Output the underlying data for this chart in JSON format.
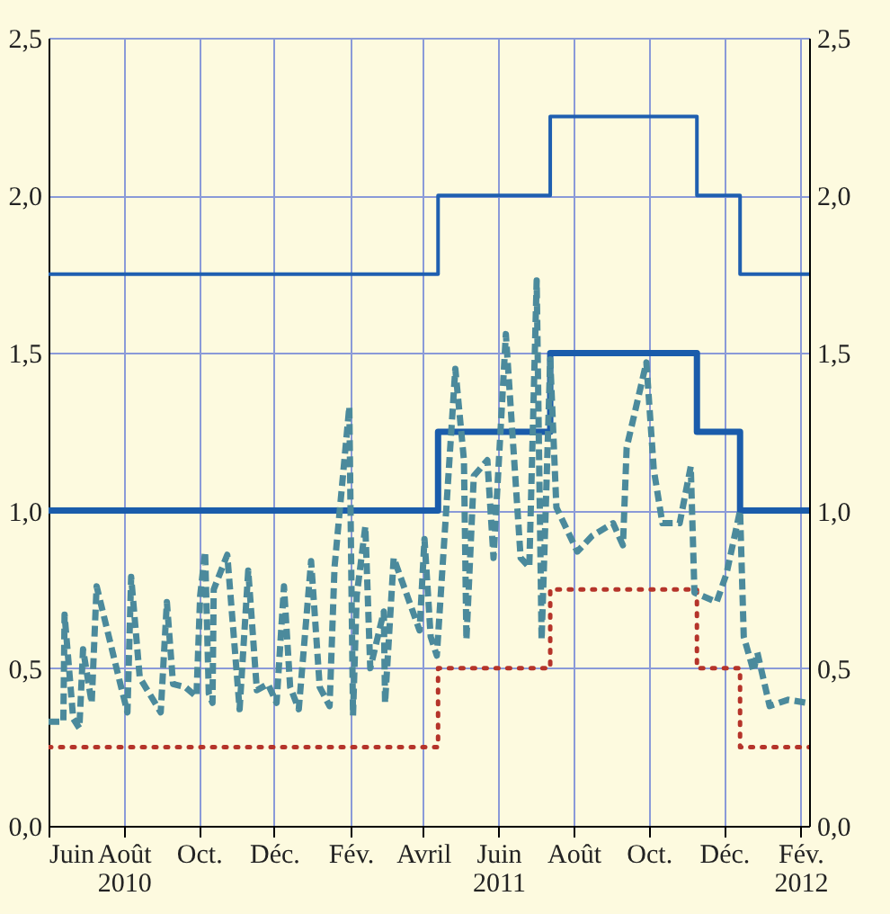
{
  "chart_data": {
    "type": "line",
    "xlim": [
      "2010-06-01",
      "2012-02-08"
    ],
    "xticks": [
      {
        "value": "2010-06-01",
        "label": "Juin"
      },
      {
        "value": "2010-08-01",
        "label": "Août\n2010"
      },
      {
        "value": "2010-10-01",
        "label": "Oct."
      },
      {
        "value": "2010-12-01",
        "label": "Déc."
      },
      {
        "value": "2011-02-01",
        "label": "Fév."
      },
      {
        "value": "2011-04-01",
        "label": "Avril"
      },
      {
        "value": "2011-06-01",
        "label": "Juin\n2011"
      },
      {
        "value": "2011-08-01",
        "label": "Août"
      },
      {
        "value": "2011-10-01",
        "label": "Oct."
      },
      {
        "value": "2011-12-01",
        "label": "Déc."
      },
      {
        "value": "2012-02-01",
        "label": "Fév.\n2012"
      }
    ],
    "ylim": [
      0,
      2.5
    ],
    "yticks": [
      {
        "value": 0,
        "label": "0,0"
      },
      {
        "value": 0.5,
        "label": "0,5"
      },
      {
        "value": 1,
        "label": "1,0"
      },
      {
        "value": 1.5,
        "label": "1,5"
      },
      {
        "value": 2,
        "label": "2,0"
      },
      {
        "value": 2.5,
        "label": "2,5"
      }
    ],
    "y2lim": [
      0,
      2.5
    ],
    "y2ticks": [
      {
        "value": 0,
        "label": "0,0"
      },
      {
        "value": 0.5,
        "label": "0,5"
      },
      {
        "value": 1,
        "label": "1,0"
      },
      {
        "value": 1.5,
        "label": "1,5"
      },
      {
        "value": 2,
        "label": "2,0"
      },
      {
        "value": 2.5,
        "label": "2,5"
      }
    ],
    "grid": true,
    "series": [
      {
        "type": "step",
        "axis": "y2",
        "color": "#1f5fb0",
        "line_style": "solid",
        "x": [
          "2010-06-01",
          "2011-04-13",
          "2011-07-13",
          "2011-11-09",
          "2011-12-14",
          "2012-02-08"
        ],
        "values": [
          1.75,
          2.0,
          2.25,
          2.0,
          1.75,
          1.75
        ]
      },
      {
        "type": "step",
        "color": "#1a5cab",
        "line_style": "solid",
        "x": [
          "2010-06-01",
          "2011-04-13",
          "2011-07-13",
          "2011-11-09",
          "2011-12-14",
          "2012-02-08"
        ],
        "values": [
          1.0,
          1.25,
          1.5,
          1.25,
          1.0,
          1.0
        ]
      },
      {
        "type": "step",
        "color": "#b5342a",
        "line_style": "dotted",
        "x": [
          "2010-06-01",
          "2011-04-13",
          "2011-07-13",
          "2011-11-09",
          "2011-12-14",
          "2012-02-08"
        ],
        "values": [
          0.25,
          0.5,
          0.75,
          0.5,
          0.25,
          0.25
        ]
      },
      {
        "type": "line",
        "color": "#4b8a9c",
        "line_style": "dashed",
        "x": [
          "2010-06-01",
          "2010-06-13",
          "2010-06-14",
          "2010-06-21",
          "2010-06-26",
          "2010-06-29",
          "2010-07-06",
          "2010-07-10",
          "2010-07-28",
          "2010-08-04",
          "2010-08-07",
          "2010-08-14",
          "2010-08-31",
          "2010-09-05",
          "2010-09-10",
          "2010-09-20",
          "2010-09-29",
          "2010-10-02",
          "2010-10-06",
          "2010-10-09",
          "2010-10-12",
          "2010-10-13",
          "2010-10-24",
          "2010-11-03",
          "2010-11-10",
          "2010-11-17",
          "2010-11-26",
          "2010-12-03",
          "2010-12-09",
          "2010-12-14",
          "2010-12-21",
          "2010-12-31",
          "2011-01-07",
          "2011-01-15",
          "2011-01-19",
          "2011-01-31",
          "2011-02-03",
          "2011-02-06",
          "2011-02-13",
          "2011-02-17",
          "2011-02-28",
          "2011-03-01",
          "2011-03-08",
          "2011-03-29",
          "2011-04-02",
          "2011-04-07",
          "2011-04-12",
          "2011-04-27",
          "2011-05-04",
          "2011-05-06",
          "2011-05-12",
          "2011-05-23",
          "2011-05-28",
          "2011-06-07",
          "2011-06-19",
          "2011-06-26",
          "2011-07-02",
          "2011-07-06",
          "2011-07-09",
          "2011-07-13",
          "2011-07-18",
          "2011-08-04",
          "2011-08-16",
          "2011-09-02",
          "2011-09-10",
          "2011-09-13",
          "2011-09-29",
          "2011-10-05",
          "2011-10-12",
          "2011-10-26",
          "2011-11-04",
          "2011-11-07",
          "2011-11-25",
          "2011-12-03",
          "2011-12-14",
          "2011-12-17",
          "2011-12-25",
          "2011-12-28",
          "2012-01-07",
          "2012-01-22",
          "2012-02-06"
        ],
        "values": [
          0.33,
          0.33,
          0.67,
          0.34,
          0.31,
          0.56,
          0.39,
          0.76,
          0.47,
          0.36,
          0.79,
          0.47,
          0.36,
          0.71,
          0.45,
          0.44,
          0.41,
          0.73,
          0.87,
          0.42,
          0.39,
          0.75,
          0.86,
          0.37,
          0.81,
          0.43,
          0.45,
          0.39,
          0.76,
          0.44,
          0.37,
          0.84,
          0.44,
          0.38,
          0.82,
          1.33,
          0.35,
          0.73,
          0.95,
          0.5,
          0.68,
          0.39,
          0.85,
          0.62,
          0.91,
          0.6,
          0.54,
          1.45,
          1.16,
          0.59,
          1.11,
          1.16,
          0.85,
          1.56,
          0.85,
          0.82,
          1.73,
          0.59,
          0.96,
          1.48,
          1.01,
          0.87,
          0.92,
          0.96,
          0.89,
          1.2,
          1.47,
          1.13,
          0.96,
          0.96,
          1.14,
          0.74,
          0.71,
          0.8,
          1.0,
          0.6,
          0.49,
          0.55,
          0.38,
          0.4,
          0.39
        ]
      }
    ]
  }
}
